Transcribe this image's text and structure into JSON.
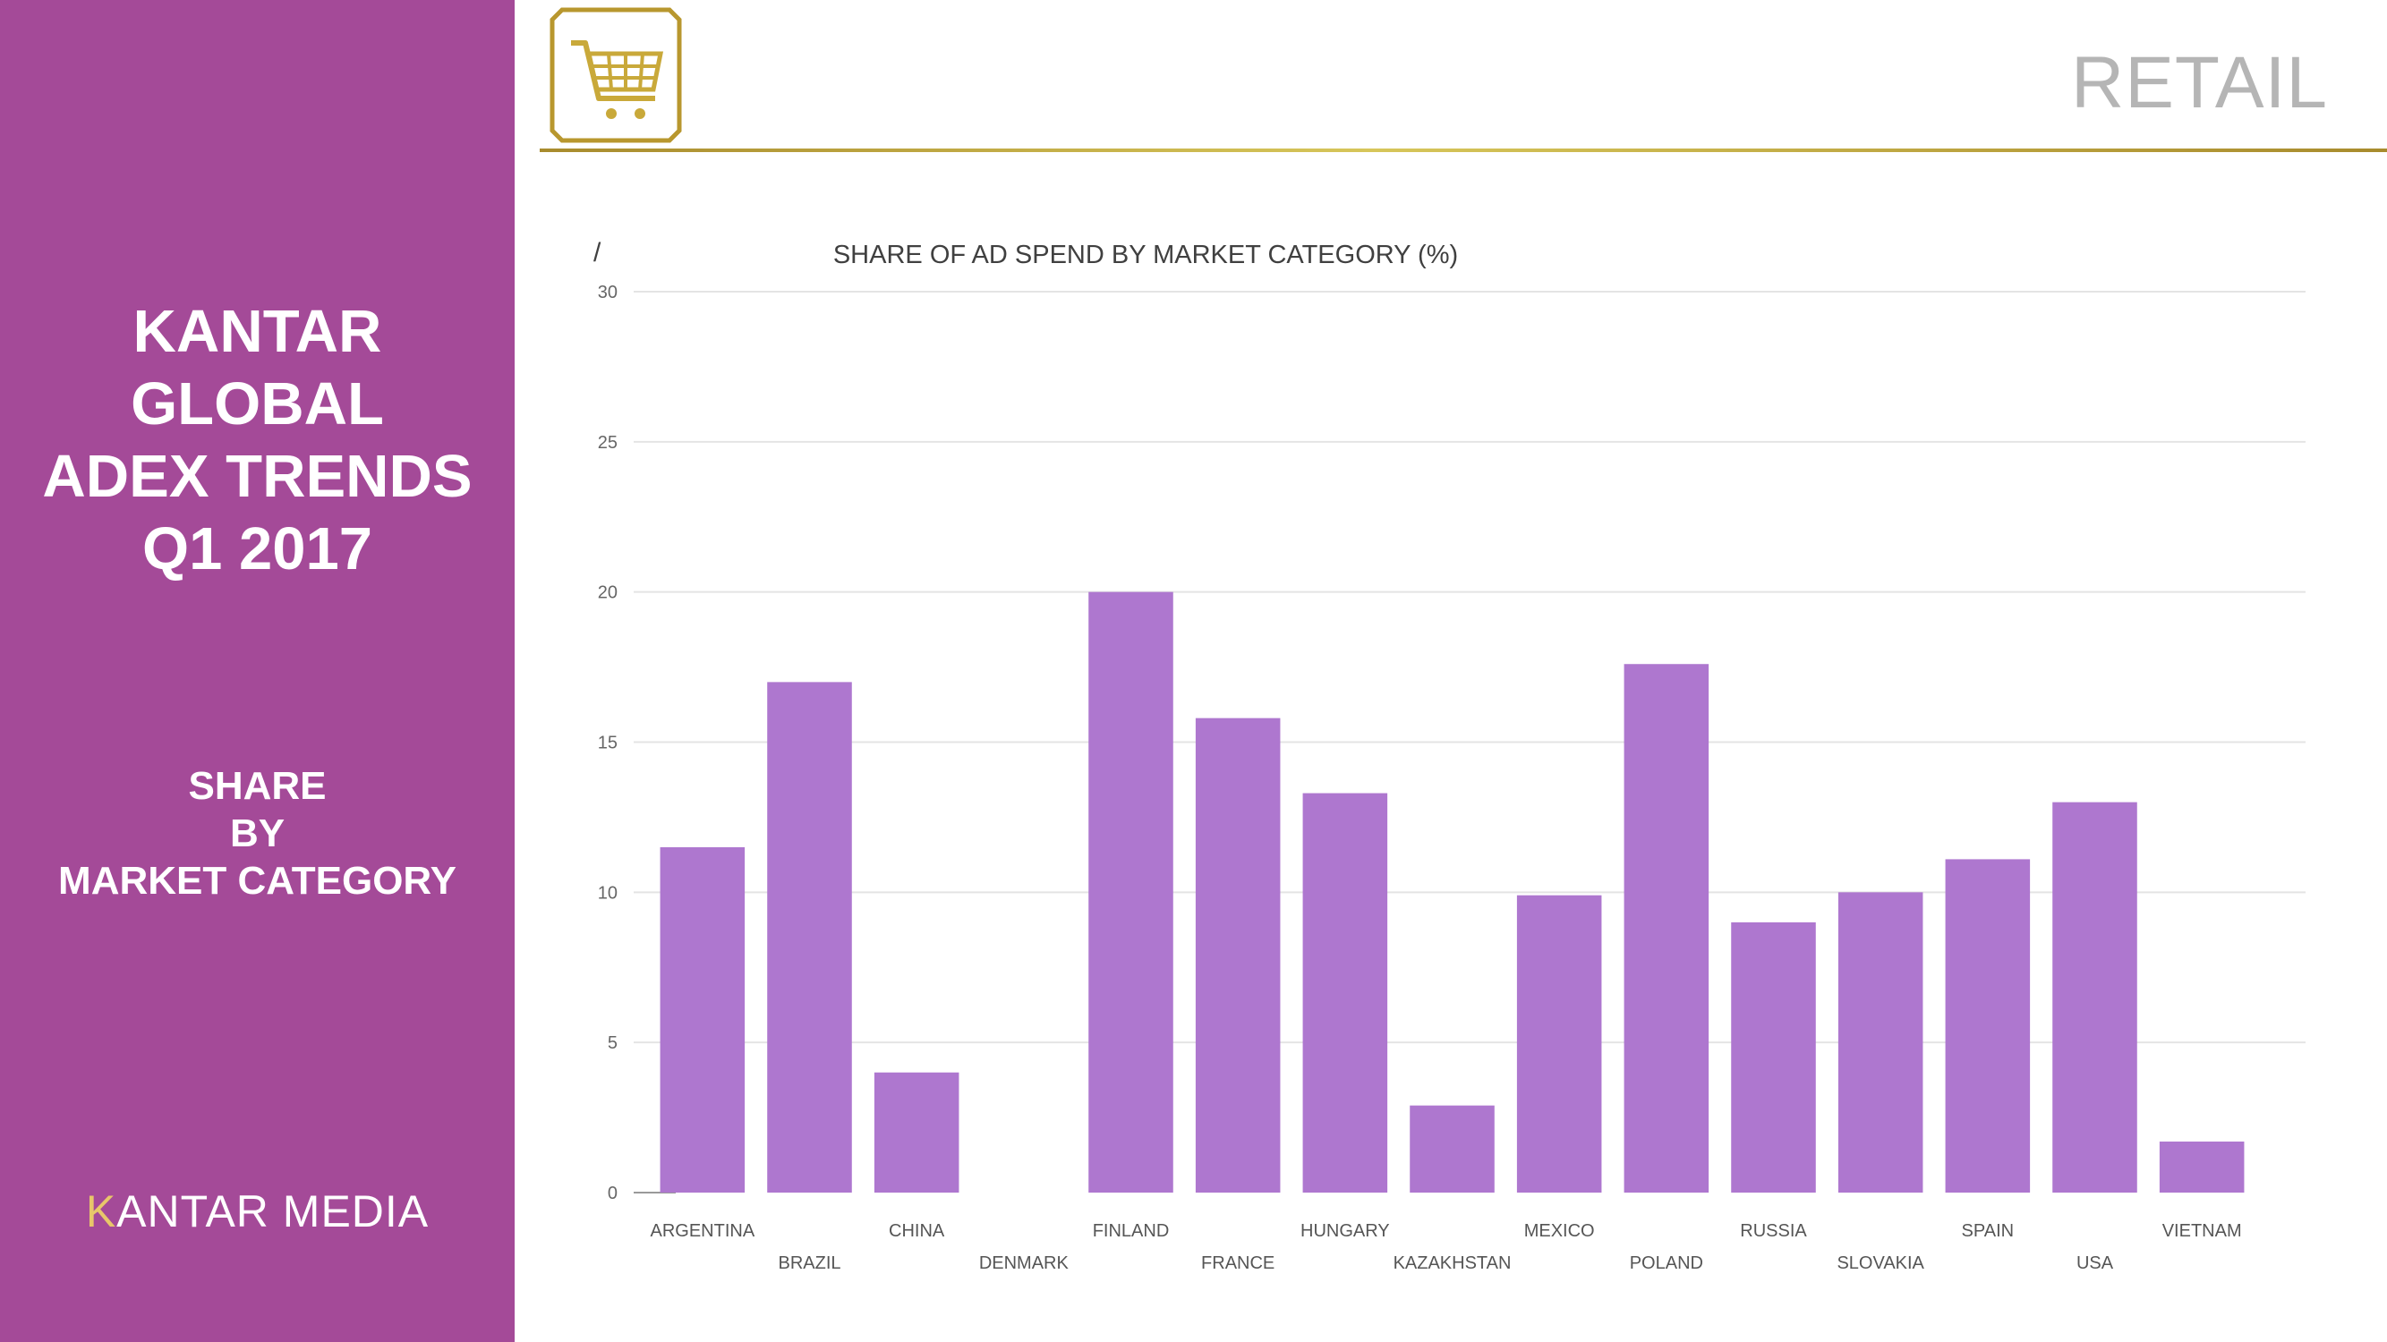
{
  "sidebar": {
    "title_lines": [
      "KANTAR",
      "GLOBAL",
      "ADEX TRENDS",
      "Q1 2017"
    ],
    "section_lines": [
      "SHARE",
      "BY",
      "MARKET CATEGORY"
    ],
    "logo_text_a": "K",
    "logo_text_b": "ANTAR MEDIA"
  },
  "header": {
    "category": "RETAIL",
    "icon": "shopping-cart-icon"
  },
  "colors": {
    "sidebar": "#a44a98",
    "bar": "#ae77cf",
    "gold": "#b8972e",
    "category_title": "#b5b5b5"
  },
  "chart_data": {
    "type": "bar",
    "title": "SHARE OF AD SPEND BY MARKET CATEGORY (%)",
    "marker": "/",
    "categories": [
      "ARGENTINA",
      "BRAZIL",
      "CHINA",
      "DENMARK",
      "FINLAND",
      "FRANCE",
      "HUNGARY",
      "KAZAKHSTAN",
      "MEXICO",
      "POLAND",
      "RUSSIA",
      "SLOVAKIA",
      "SPAIN",
      "USA",
      "VIETNAM"
    ],
    "values": [
      11.5,
      17.0,
      4.0,
      0.0,
      20.0,
      15.8,
      13.3,
      2.9,
      9.9,
      17.6,
      9.0,
      10.0,
      11.1,
      13.0,
      1.7
    ],
    "ylim": [
      0,
      30
    ],
    "yticks": [
      0,
      5,
      10,
      15,
      20,
      25,
      30
    ],
    "grid": true,
    "legend": "none",
    "xlabel": "",
    "ylabel": ""
  }
}
